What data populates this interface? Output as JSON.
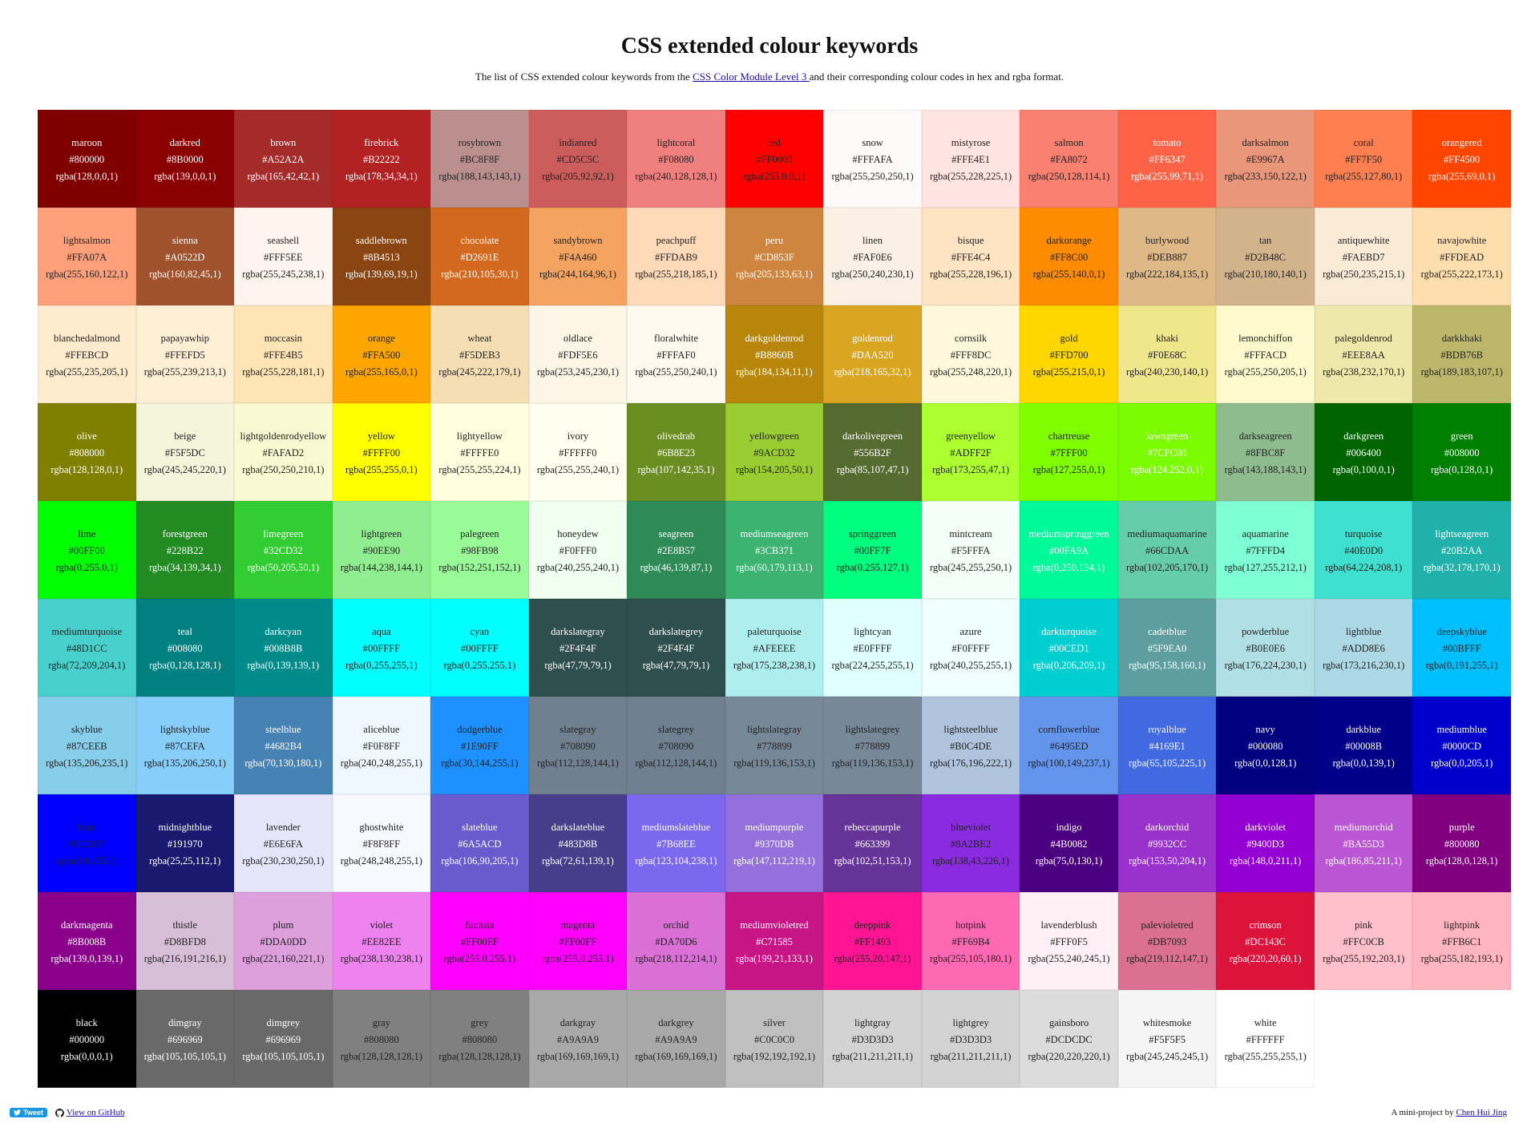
{
  "header": {
    "title": "CSS extended colour keywords",
    "subtitle_before": "The list of CSS extended colour keywords from the ",
    "subtitle_link": "CSS Color Module Level 3 ",
    "subtitle_after": "and their corresponding colour codes in hex and rgba format."
  },
  "footer": {
    "tweet_label": "Tweet",
    "github_label": "View on GitHub",
    "credit_prefix": "A mini-project by ",
    "credit_name": "Chen Hui Jing"
  },
  "grid_offset": 1,
  "colors": [
    {
      "name": "maroon",
      "hex": "#800000",
      "rgba": "rgba(128,0,0,1)",
      "dark": true
    },
    {
      "name": "darkred",
      "hex": "#8B0000",
      "rgba": "rgba(139,0,0,1)",
      "dark": true
    },
    {
      "name": "brown",
      "hex": "#A52A2A",
      "rgba": "rgba(165,42,42,1)",
      "dark": true
    },
    {
      "name": "firebrick",
      "hex": "#B22222",
      "rgba": "rgba(178,34,34,1)",
      "dark": true
    },
    {
      "name": "rosybrown",
      "hex": "#BC8F8F",
      "rgba": "rgba(188,143,143,1)",
      "dark": false
    },
    {
      "name": "indianred",
      "hex": "#CD5C5C",
      "rgba": "rgba(205,92,92,1)",
      "dark": false
    },
    {
      "name": "lightcoral",
      "hex": "#F08080",
      "rgba": "rgba(240,128,128,1)",
      "dark": false
    },
    {
      "name": "red",
      "hex": "#FF0000",
      "rgba": "rgba(255,0,0,1)",
      "dark": false
    },
    {
      "name": "snow",
      "hex": "#FFFAFA",
      "rgba": "rgba(255,250,250,1)",
      "dark": false
    },
    {
      "name": "mistyrose",
      "hex": "#FFE4E1",
      "rgba": "rgba(255,228,225,1)",
      "dark": false
    },
    {
      "name": "salmon",
      "hex": "#FA8072",
      "rgba": "rgba(250,128,114,1)",
      "dark": false
    },
    {
      "name": "tomato",
      "hex": "#FF6347",
      "rgba": "rgba(255,99,71,1)",
      "dark": true
    },
    {
      "name": "darksalmon",
      "hex": "#E9967A",
      "rgba": "rgba(233,150,122,1)",
      "dark": false
    },
    {
      "name": "coral",
      "hex": "#FF7F50",
      "rgba": "rgba(255,127,80,1)",
      "dark": false
    },
    {
      "name": "orangered",
      "hex": "#FF4500",
      "rgba": "rgba(255,69,0,1)",
      "dark": true
    },
    {
      "name": "lightsalmon",
      "hex": "#FFA07A",
      "rgba": "rgba(255,160,122,1)",
      "dark": false
    },
    {
      "name": "sienna",
      "hex": "#A0522D",
      "rgba": "rgba(160,82,45,1)",
      "dark": true
    },
    {
      "name": "seashell",
      "hex": "#FFF5EE",
      "rgba": "rgba(255,245,238,1)",
      "dark": false
    },
    {
      "name": "saddlebrown",
      "hex": "#8B4513",
      "rgba": "rgba(139,69,19,1)",
      "dark": true
    },
    {
      "name": "chocolate",
      "hex": "#D2691E",
      "rgba": "rgba(210,105,30,1)",
      "dark": true
    },
    {
      "name": "sandybrown",
      "hex": "#F4A460",
      "rgba": "rgba(244,164,96,1)",
      "dark": false
    },
    {
      "name": "peachpuff",
      "hex": "#FFDAB9",
      "rgba": "rgba(255,218,185,1)",
      "dark": false
    },
    {
      "name": "peru",
      "hex": "#CD853F",
      "rgba": "rgba(205,133,63,1)",
      "dark": true
    },
    {
      "name": "linen",
      "hex": "#FAF0E6",
      "rgba": "rgba(250,240,230,1)",
      "dark": false
    },
    {
      "name": "bisque",
      "hex": "#FFE4C4",
      "rgba": "rgba(255,228,196,1)",
      "dark": false
    },
    {
      "name": "darkorange",
      "hex": "#FF8C00",
      "rgba": "rgba(255,140,0,1)",
      "dark": false
    },
    {
      "name": "burlywood",
      "hex": "#DEB887",
      "rgba": "rgba(222,184,135,1)",
      "dark": false
    },
    {
      "name": "tan",
      "hex": "#D2B48C",
      "rgba": "rgba(210,180,140,1)",
      "dark": false
    },
    {
      "name": "antiquewhite",
      "hex": "#FAEBD7",
      "rgba": "rgba(250,235,215,1)",
      "dark": false
    },
    {
      "name": "navajowhite",
      "hex": "#FFDEAD",
      "rgba": "rgba(255,222,173,1)",
      "dark": false
    },
    {
      "name": "blanchedalmond",
      "hex": "#FFEBCD",
      "rgba": "rgba(255,235,205,1)",
      "dark": false
    },
    {
      "name": "papayawhip",
      "hex": "#FFEFD5",
      "rgba": "rgba(255,239,213,1)",
      "dark": false
    },
    {
      "name": "moccasin",
      "hex": "#FFE4B5",
      "rgba": "rgba(255,228,181,1)",
      "dark": false
    },
    {
      "name": "orange",
      "hex": "#FFA500",
      "rgba": "rgba(255,165,0,1)",
      "dark": false
    },
    {
      "name": "wheat",
      "hex": "#F5DEB3",
      "rgba": "rgba(245,222,179,1)",
      "dark": false
    },
    {
      "name": "oldlace",
      "hex": "#FDF5E6",
      "rgba": "rgba(253,245,230,1)",
      "dark": false
    },
    {
      "name": "floralwhite",
      "hex": "#FFFAF0",
      "rgba": "rgba(255,250,240,1)",
      "dark": false
    },
    {
      "name": "darkgoldenrod",
      "hex": "#B8860B",
      "rgba": "rgba(184,134,11,1)",
      "dark": true
    },
    {
      "name": "goldenrod",
      "hex": "#DAA520",
      "rgba": "rgba(218,165,32,1)",
      "dark": true
    },
    {
      "name": "cornsilk",
      "hex": "#FFF8DC",
      "rgba": "rgba(255,248,220,1)",
      "dark": false
    },
    {
      "name": "gold",
      "hex": "#FFD700",
      "rgba": "rgba(255,215,0,1)",
      "dark": false
    },
    {
      "name": "khaki",
      "hex": "#F0E68C",
      "rgba": "rgba(240,230,140,1)",
      "dark": false
    },
    {
      "name": "lemonchiffon",
      "hex": "#FFFACD",
      "rgba": "rgba(255,250,205,1)",
      "dark": false
    },
    {
      "name": "palegoldenrod",
      "hex": "#EEE8AA",
      "rgba": "rgba(238,232,170,1)",
      "dark": false
    },
    {
      "name": "darkkhaki",
      "hex": "#BDB76B",
      "rgba": "rgba(189,183,107,1)",
      "dark": false
    },
    {
      "name": "olive",
      "hex": "#808000",
      "rgba": "rgba(128,128,0,1)",
      "dark": true
    },
    {
      "name": "beige",
      "hex": "#F5F5DC",
      "rgba": "rgba(245,245,220,1)",
      "dark": false
    },
    {
      "name": "lightgoldenrodyellow",
      "hex": "#FAFAD2",
      "rgba": "rgba(250,250,210,1)",
      "dark": false
    },
    {
      "name": "yellow",
      "hex": "#FFFF00",
      "rgba": "rgba(255,255,0,1)",
      "dark": false
    },
    {
      "name": "lightyellow",
      "hex": "#FFFFE0",
      "rgba": "rgba(255,255,224,1)",
      "dark": false
    },
    {
      "name": "ivory",
      "hex": "#FFFFF0",
      "rgba": "rgba(255,255,240,1)",
      "dark": false
    },
    {
      "name": "olivedrab",
      "hex": "#6B8E23",
      "rgba": "rgba(107,142,35,1)",
      "dark": true
    },
    {
      "name": "yellowgreen",
      "hex": "#9ACD32",
      "rgba": "rgba(154,205,50,1)",
      "dark": false
    },
    {
      "name": "darkolivegreen",
      "hex": "#556B2F",
      "rgba": "rgba(85,107,47,1)",
      "dark": true
    },
    {
      "name": "greenyellow",
      "hex": "#ADFF2F",
      "rgba": "rgba(173,255,47,1)",
      "dark": false
    },
    {
      "name": "chartreuse",
      "hex": "#7FFF00",
      "rgba": "rgba(127,255,0,1)",
      "dark": false
    },
    {
      "name": "lawngreen",
      "hex": "#7CFC00",
      "rgba": "rgba(124,252,0,1)",
      "dark": true
    },
    {
      "name": "darkseagreen",
      "hex": "#8FBC8F",
      "rgba": "rgba(143,188,143,1)",
      "dark": false
    },
    {
      "name": "darkgreen",
      "hex": "#006400",
      "rgba": "rgba(0,100,0,1)",
      "dark": true
    },
    {
      "name": "green",
      "hex": "#008000",
      "rgba": "rgba(0,128,0,1)",
      "dark": true
    },
    {
      "name": "lime",
      "hex": "#00FF00",
      "rgba": "rgba(0,255,0,1)",
      "dark": false
    },
    {
      "name": "forestgreen",
      "hex": "#228B22",
      "rgba": "rgba(34,139,34,1)",
      "dark": true
    },
    {
      "name": "limegreen",
      "hex": "#32CD32",
      "rgba": "rgba(50,205,50,1)",
      "dark": true
    },
    {
      "name": "lightgreen",
      "hex": "#90EE90",
      "rgba": "rgba(144,238,144,1)",
      "dark": false
    },
    {
      "name": "palegreen",
      "hex": "#98FB98",
      "rgba": "rgba(152,251,152,1)",
      "dark": false
    },
    {
      "name": "honeydew",
      "hex": "#F0FFF0",
      "rgba": "rgba(240,255,240,1)",
      "dark": false
    },
    {
      "name": "seagreen",
      "hex": "#2E8B57",
      "rgba": "rgba(46,139,87,1)",
      "dark": true
    },
    {
      "name": "mediumseagreen",
      "hex": "#3CB371",
      "rgba": "rgba(60,179,113,1)",
      "dark": true
    },
    {
      "name": "springgreen",
      "hex": "#00FF7F",
      "rgba": "rgba(0,255,127,1)",
      "dark": false
    },
    {
      "name": "mintcream",
      "hex": "#F5FFFA",
      "rgba": "rgba(245,255,250,1)",
      "dark": false
    },
    {
      "name": "mediumspringgreen",
      "hex": "#00FA9A",
      "rgba": "rgba(0,250,154,1)",
      "dark": true
    },
    {
      "name": "mediumaquamarine",
      "hex": "#66CDAA",
      "rgba": "rgba(102,205,170,1)",
      "dark": false
    },
    {
      "name": "aquamarine",
      "hex": "#7FFFD4",
      "rgba": "rgba(127,255,212,1)",
      "dark": false
    },
    {
      "name": "turquoise",
      "hex": "#40E0D0",
      "rgba": "rgba(64,224,208,1)",
      "dark": false
    },
    {
      "name": "lightseagreen",
      "hex": "#20B2AA",
      "rgba": "rgba(32,178,170,1)",
      "dark": true
    },
    {
      "name": "mediumturquoise",
      "hex": "#48D1CC",
      "rgba": "rgba(72,209,204,1)",
      "dark": false
    },
    {
      "name": "teal",
      "hex": "#008080",
      "rgba": "rgba(0,128,128,1)",
      "dark": true
    },
    {
      "name": "darkcyan",
      "hex": "#008B8B",
      "rgba": "rgba(0,139,139,1)",
      "dark": true
    },
    {
      "name": "aqua",
      "hex": "#00FFFF",
      "rgba": "rgba(0,255,255,1)",
      "dark": false
    },
    {
      "name": "cyan",
      "hex": "#00FFFF",
      "rgba": "rgba(0,255,255,1)",
      "dark": false
    },
    {
      "name": "darkslategray",
      "hex": "#2F4F4F",
      "rgba": "rgba(47,79,79,1)",
      "dark": true
    },
    {
      "name": "darkslategrey",
      "hex": "#2F4F4F",
      "rgba": "rgba(47,79,79,1)",
      "dark": true
    },
    {
      "name": "paleturquoise",
      "hex": "#AFEEEE",
      "rgba": "rgba(175,238,238,1)",
      "dark": false
    },
    {
      "name": "lightcyan",
      "hex": "#E0FFFF",
      "rgba": "rgba(224,255,255,1)",
      "dark": false
    },
    {
      "name": "azure",
      "hex": "#F0FFFF",
      "rgba": "rgba(240,255,255,1)",
      "dark": false
    },
    {
      "name": "darkturquoise",
      "hex": "#00CED1",
      "rgba": "rgba(0,206,209,1)",
      "dark": true
    },
    {
      "name": "cadetblue",
      "hex": "#5F9EA0",
      "rgba": "rgba(95,158,160,1)",
      "dark": true
    },
    {
      "name": "powderblue",
      "hex": "#B0E0E6",
      "rgba": "rgba(176,224,230,1)",
      "dark": false
    },
    {
      "name": "lightblue",
      "hex": "#ADD8E6",
      "rgba": "rgba(173,216,230,1)",
      "dark": false
    },
    {
      "name": "deepskyblue",
      "hex": "#00BFFF",
      "rgba": "rgba(0,191,255,1)",
      "dark": false
    },
    {
      "name": "skyblue",
      "hex": "#87CEEB",
      "rgba": "rgba(135,206,235,1)",
      "dark": false
    },
    {
      "name": "lightskyblue",
      "hex": "#87CEFA",
      "rgba": "rgba(135,206,250,1)",
      "dark": false
    },
    {
      "name": "steelblue",
      "hex": "#4682B4",
      "rgba": "rgba(70,130,180,1)",
      "dark": true
    },
    {
      "name": "aliceblue",
      "hex": "#F0F8FF",
      "rgba": "rgba(240,248,255,1)",
      "dark": false
    },
    {
      "name": "dodgerblue",
      "hex": "#1E90FF",
      "rgba": "rgba(30,144,255,1)",
      "dark": false
    },
    {
      "name": "slategray",
      "hex": "#708090",
      "rgba": "rgba(112,128,144,1)",
      "dark": false
    },
    {
      "name": "slategrey",
      "hex": "#708090",
      "rgba": "rgba(112,128,144,1)",
      "dark": false
    },
    {
      "name": "lightslategray",
      "hex": "#778899",
      "rgba": "rgba(119,136,153,1)",
      "dark": false
    },
    {
      "name": "lightslategrey",
      "hex": "#778899",
      "rgba": "rgba(119,136,153,1)",
      "dark": false
    },
    {
      "name": "lightsteelblue",
      "hex": "#B0C4DE",
      "rgba": "rgba(176,196,222,1)",
      "dark": false
    },
    {
      "name": "cornflowerblue",
      "hex": "#6495ED",
      "rgba": "rgba(100,149,237,1)",
      "dark": false
    },
    {
      "name": "royalblue",
      "hex": "#4169E1",
      "rgba": "rgba(65,105,225,1)",
      "dark": true
    },
    {
      "name": "navy",
      "hex": "#000080",
      "rgba": "rgba(0,0,128,1)",
      "dark": true
    },
    {
      "name": "darkblue",
      "hex": "#00008B",
      "rgba": "rgba(0,0,139,1)",
      "dark": true
    },
    {
      "name": "mediumblue",
      "hex": "#0000CD",
      "rgba": "rgba(0,0,205,1)",
      "dark": true
    },
    {
      "name": "blue",
      "hex": "#0000FF",
      "rgba": "rgba(0,0,255,1)",
      "dark": false
    },
    {
      "name": "midnightblue",
      "hex": "#191970",
      "rgba": "rgba(25,25,112,1)",
      "dark": true
    },
    {
      "name": "lavender",
      "hex": "#E6E6FA",
      "rgba": "rgba(230,230,250,1)",
      "dark": false
    },
    {
      "name": "ghostwhite",
      "hex": "#F8F8FF",
      "rgba": "rgba(248,248,255,1)",
      "dark": false
    },
    {
      "name": "slateblue",
      "hex": "#6A5ACD",
      "rgba": "rgba(106,90,205,1)",
      "dark": true
    },
    {
      "name": "darkslateblue",
      "hex": "#483D8B",
      "rgba": "rgba(72,61,139,1)",
      "dark": true
    },
    {
      "name": "mediumslateblue",
      "hex": "#7B68EE",
      "rgba": "rgba(123,104,238,1)",
      "dark": true
    },
    {
      "name": "mediumpurple",
      "hex": "#9370DB",
      "rgba": "rgba(147,112,219,1)",
      "dark": true
    },
    {
      "name": "rebeccapurple",
      "hex": "#663399",
      "rgba": "rgba(102,51,153,1)",
      "dark": true
    },
    {
      "name": "blueviolet",
      "hex": "#8A2BE2",
      "rgba": "rgba(138,43,226,1)",
      "dark": false
    },
    {
      "name": "indigo",
      "hex": "#4B0082",
      "rgba": "rgba(75,0,130,1)",
      "dark": true
    },
    {
      "name": "darkorchid",
      "hex": "#9932CC",
      "rgba": "rgba(153,50,204,1)",
      "dark": true
    },
    {
      "name": "darkviolet",
      "hex": "#9400D3",
      "rgba": "rgba(148,0,211,1)",
      "dark": true
    },
    {
      "name": "mediumorchid",
      "hex": "#BA55D3",
      "rgba": "rgba(186,85,211,1)",
      "dark": true
    },
    {
      "name": "purple",
      "hex": "#800080",
      "rgba": "rgba(128,0,128,1)",
      "dark": true
    },
    {
      "name": "darkmagenta",
      "hex": "#8B008B",
      "rgba": "rgba(139,0,139,1)",
      "dark": true
    },
    {
      "name": "thistle",
      "hex": "#D8BFD8",
      "rgba": "rgba(216,191,216,1)",
      "dark": false
    },
    {
      "name": "plum",
      "hex": "#DDA0DD",
      "rgba": "rgba(221,160,221,1)",
      "dark": false
    },
    {
      "name": "violet",
      "hex": "#EE82EE",
      "rgba": "rgba(238,130,238,1)",
      "dark": false
    },
    {
      "name": "fuchsia",
      "hex": "#FF00FF",
      "rgba": "rgba(255,0,255,1)",
      "dark": false
    },
    {
      "name": "magenta",
      "hex": "#FF00FF",
      "rgba": "rgba(255,0,255,1)",
      "dark": false
    },
    {
      "name": "orchid",
      "hex": "#DA70D6",
      "rgba": "rgba(218,112,214,1)",
      "dark": false
    },
    {
      "name": "mediumvioletred",
      "hex": "#C71585",
      "rgba": "rgba(199,21,133,1)",
      "dark": true
    },
    {
      "name": "deeppink",
      "hex": "#FF1493",
      "rgba": "rgba(255,20,147,1)",
      "dark": false
    },
    {
      "name": "hotpink",
      "hex": "#FF69B4",
      "rgba": "rgba(255,105,180,1)",
      "dark": false
    },
    {
      "name": "lavenderblush",
      "hex": "#FFF0F5",
      "rgba": "rgba(255,240,245,1)",
      "dark": false
    },
    {
      "name": "palevioletred",
      "hex": "#DB7093",
      "rgba": "rgba(219,112,147,1)",
      "dark": false
    },
    {
      "name": "crimson",
      "hex": "#DC143C",
      "rgba": "rgba(220,20,60,1)",
      "dark": true
    },
    {
      "name": "pink",
      "hex": "#FFC0CB",
      "rgba": "rgba(255,192,203,1)",
      "dark": false
    },
    {
      "name": "lightpink",
      "hex": "#FFB6C1",
      "rgba": "rgba(255,182,193,1)",
      "dark": false
    },
    {
      "name": "black",
      "hex": "#000000",
      "rgba": "rgba(0,0,0,1)",
      "dark": true
    },
    {
      "name": "dimgray",
      "hex": "#696969",
      "rgba": "rgba(105,105,105,1)",
      "dark": true
    },
    {
      "name": "dimgrey",
      "hex": "#696969",
      "rgba": "rgba(105,105,105,1)",
      "dark": true
    },
    {
      "name": "gray",
      "hex": "#808080",
      "rgba": "rgba(128,128,128,1)",
      "dark": false
    },
    {
      "name": "grey",
      "hex": "#808080",
      "rgba": "rgba(128,128,128,1)",
      "dark": false
    },
    {
      "name": "darkgray",
      "hex": "#A9A9A9",
      "rgba": "rgba(169,169,169,1)",
      "dark": false
    },
    {
      "name": "darkgrey",
      "hex": "#A9A9A9",
      "rgba": "rgba(169,169,169,1)",
      "dark": false
    },
    {
      "name": "silver",
      "hex": "#C0C0C0",
      "rgba": "rgba(192,192,192,1)",
      "dark": false
    },
    {
      "name": "lightgray",
      "hex": "#D3D3D3",
      "rgba": "rgba(211,211,211,1)",
      "dark": false
    },
    {
      "name": "lightgrey",
      "hex": "#D3D3D3",
      "rgba": "rgba(211,211,211,1)",
      "dark": false
    },
    {
      "name": "gainsboro",
      "hex": "#DCDCDC",
      "rgba": "rgba(220,220,220,1)",
      "dark": false
    },
    {
      "name": "whitesmoke",
      "hex": "#F5F5F5",
      "rgba": "rgba(245,245,245,1)",
      "dark": false
    },
    {
      "name": "white",
      "hex": "#FFFFFF",
      "rgba": "rgba(255,255,255,1)",
      "dark": false
    }
  ]
}
